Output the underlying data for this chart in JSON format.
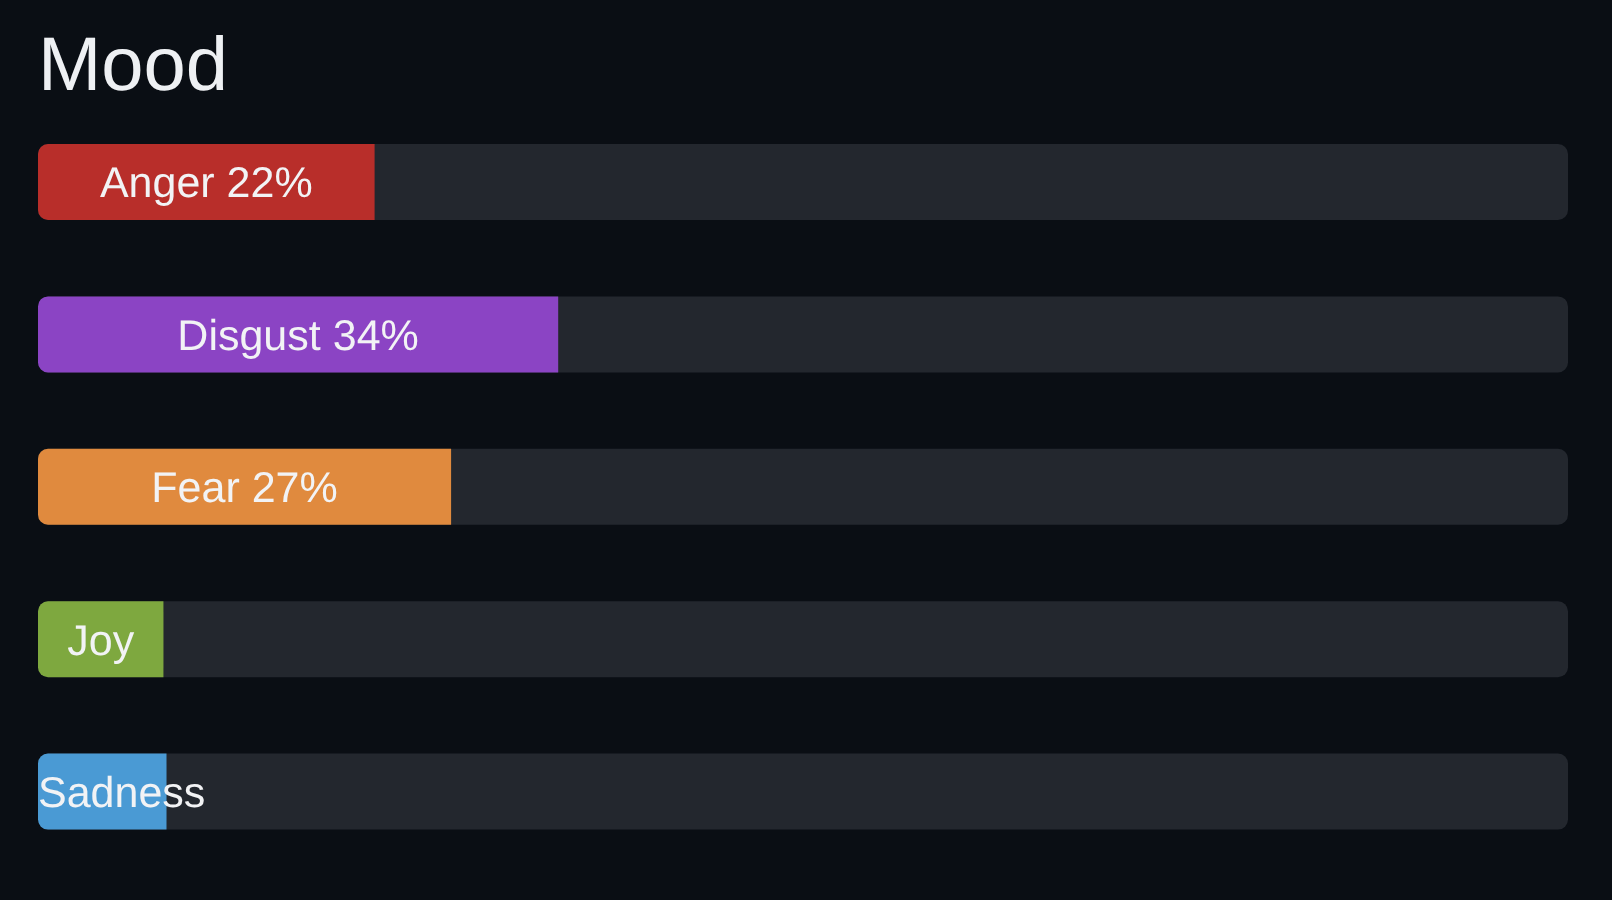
{
  "chart_data": {
    "type": "bar",
    "title": "Mood",
    "orientation": "horizontal",
    "categories": [
      "Anger",
      "Disgust",
      "Fear",
      "Joy",
      "Sadness"
    ],
    "values": [
      22,
      34,
      27,
      8.2,
      8.4
    ],
    "value_labels": [
      "22%",
      "34%",
      "27%",
      null,
      null
    ],
    "colors": [
      "#b82e2a",
      "#8b44c4",
      "#e08a3e",
      "#7ea83f",
      "#4a9ad4"
    ],
    "xlim": [
      0,
      100
    ],
    "tick_labels": false,
    "grid": false,
    "legend": false
  }
}
